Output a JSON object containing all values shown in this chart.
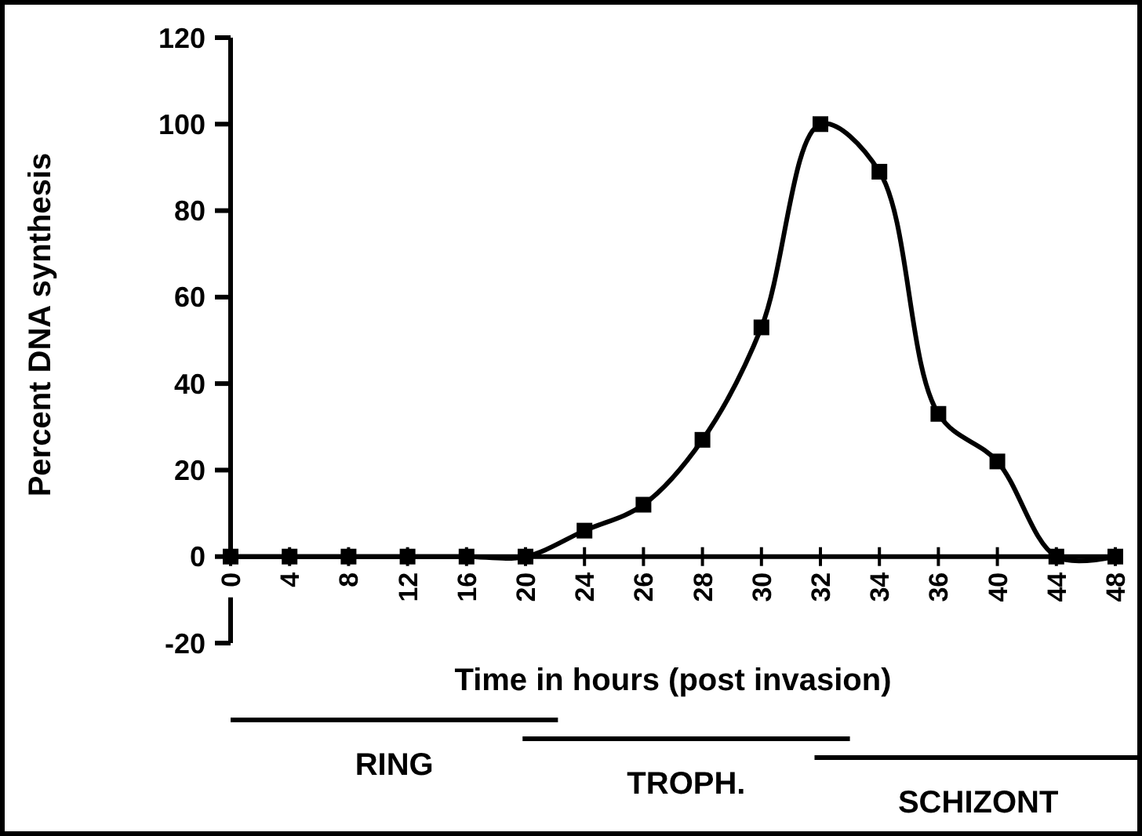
{
  "chart_data": {
    "type": "line",
    "xlabel": "Time in hours (post invasion)",
    "ylabel": "Percent DNA synthesis",
    "categories": [
      "0",
      "4",
      "8",
      "12",
      "16",
      "20",
      "24",
      "26",
      "28",
      "30",
      "32",
      "34",
      "36",
      "40",
      "44",
      "48"
    ],
    "series": [
      {
        "color": "#000000",
        "values": [
          0,
          0,
          0,
          0,
          0,
          0,
          6,
          12,
          27,
          53,
          100,
          89,
          33,
          22,
          0,
          0
        ]
      }
    ],
    "ylim": [
      -20,
      120
    ],
    "yticks": [
      -20,
      0,
      20,
      40,
      60,
      80,
      100,
      120
    ],
    "grid": false,
    "marker": "square",
    "line_style": "solid",
    "annotations": [
      "RING",
      "TROPH.",
      "SCHIZONT"
    ]
  }
}
